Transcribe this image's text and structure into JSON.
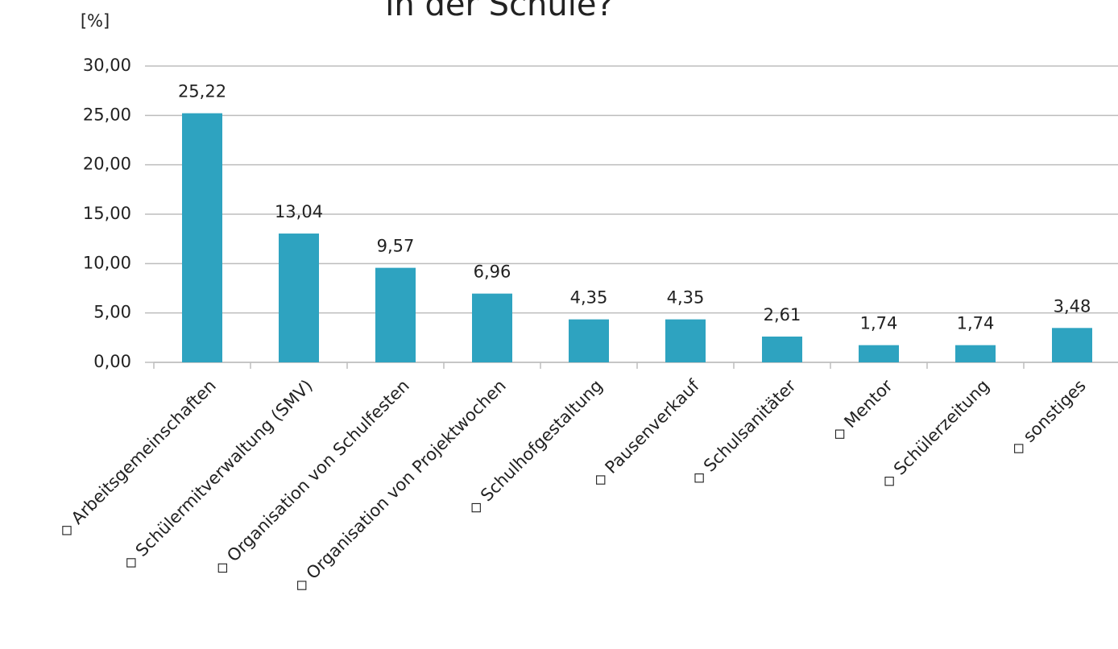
{
  "chart_data": {
    "type": "bar",
    "title": "in der Schule?",
    "y_label": "[%]",
    "categories": [
      "◇ Arbeitsgemeinschaften",
      "◇ Schülermitverwaltung (SMV)",
      "◇ Organisation von Schulfesten",
      "◇ Organisation von Projektwochen",
      "◇ Schulhofgestaltung",
      "◇ Pausenverkauf",
      "◇ Schulsanitäter",
      "◇ Mentor",
      "◇ Schülerzeitung",
      "◇ sonstiges"
    ],
    "values": [
      25.22,
      13.04,
      9.57,
      6.96,
      4.35,
      4.35,
      2.61,
      1.74,
      1.74,
      3.48
    ],
    "value_labels": [
      "25,22",
      "13,04",
      "9,57",
      "6,96",
      "4,35",
      "4,35",
      "2,61",
      "1,74",
      "1,74",
      "3,48"
    ],
    "color": "#2ea3c0",
    "ylim": [
      0,
      30
    ],
    "yticks": [
      {
        "value": 0,
        "label": "0,00"
      },
      {
        "value": 5,
        "label": "5,00"
      },
      {
        "value": 10,
        "label": "10,00"
      },
      {
        "value": 15,
        "label": "15,00"
      },
      {
        "value": 20,
        "label": "20,00"
      },
      {
        "value": 25,
        "label": "25,00"
      },
      {
        "value": 30,
        "label": "30,00"
      }
    ],
    "grid": true
  }
}
